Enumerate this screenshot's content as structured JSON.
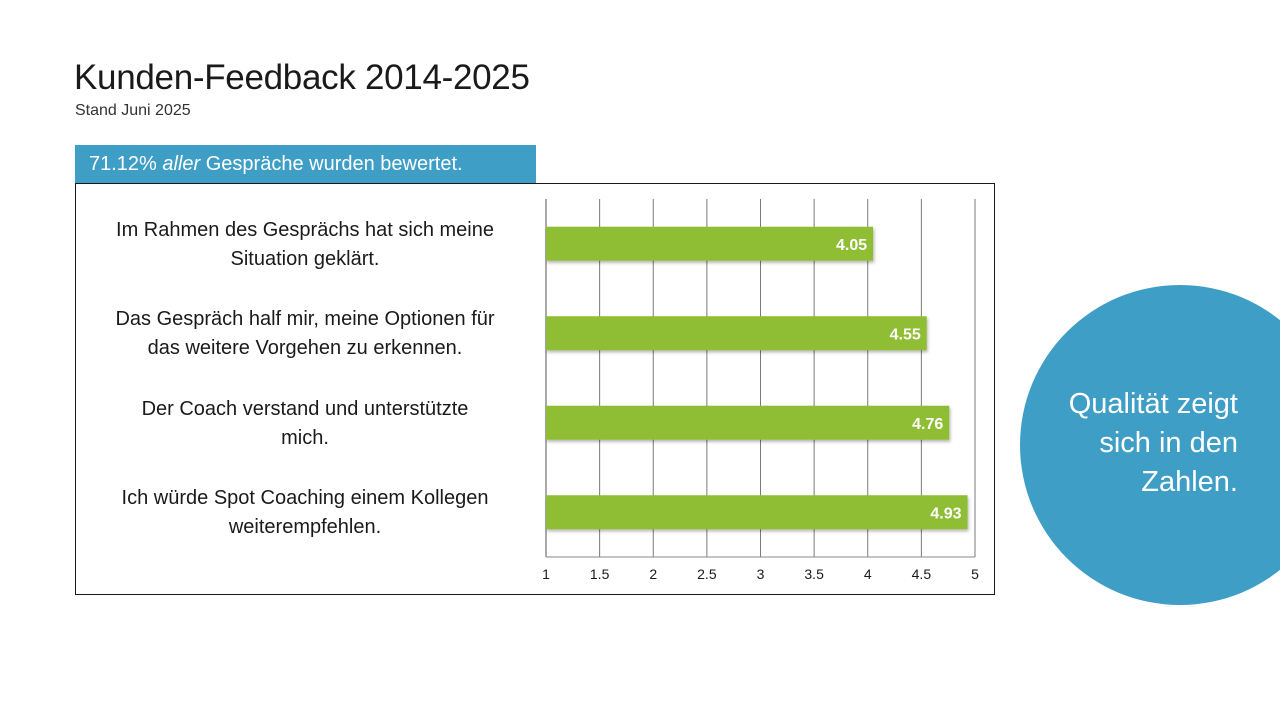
{
  "header": {
    "title": "Kunden-Feedback 2014-2025",
    "subtitle": "Stand Juni 2025"
  },
  "banner": {
    "pre": "71.12% ",
    "em": "aller",
    "post": " Gespräche wurden bewertet."
  },
  "callout": {
    "line1": "Qualität zeigt",
    "line2": "sich in den",
    "line3": "Zahlen."
  },
  "colors": {
    "accent": "#3e9ec6",
    "bar": "#8fbe34",
    "grid": "#7a7a7a"
  },
  "chart_data": {
    "type": "bar",
    "orientation": "horizontal",
    "categories": [
      "Im Rahmen des Gesprächs hat sich meine Situation geklärt.",
      "Das Gespräch half mir, meine Optionen für das weitere Vorgehen zu erkennen.",
      "Der Coach verstand und unterstützte mich.",
      "Ich würde Spot Coaching einem Kollegen weiterempfehlen."
    ],
    "category_lines": [
      [
        "Im Rahmen des Gesprächs hat sich meine",
        "Situation geklärt."
      ],
      [
        "Das Gespräch half mir, meine Optionen für",
        "das weitere Vorgehen zu erkennen."
      ],
      [
        "Der Coach verstand und unterstützte",
        "mich."
      ],
      [
        "Ich würde Spot Coaching einem Kollegen",
        "weiterempfehlen."
      ]
    ],
    "values": [
      4.05,
      4.55,
      4.76,
      4.93
    ],
    "value_labels": [
      "4.05",
      "4.55",
      "4.76",
      "4.93"
    ],
    "xlim": [
      1,
      5
    ],
    "ticks": [
      1,
      1.5,
      2,
      2.5,
      3,
      3.5,
      4,
      4.5,
      5
    ],
    "tick_labels": [
      "1",
      "1.5",
      "2",
      "2.5",
      "3",
      "3.5",
      "4",
      "4.5",
      "5"
    ],
    "grid": true,
    "legend": "none"
  }
}
